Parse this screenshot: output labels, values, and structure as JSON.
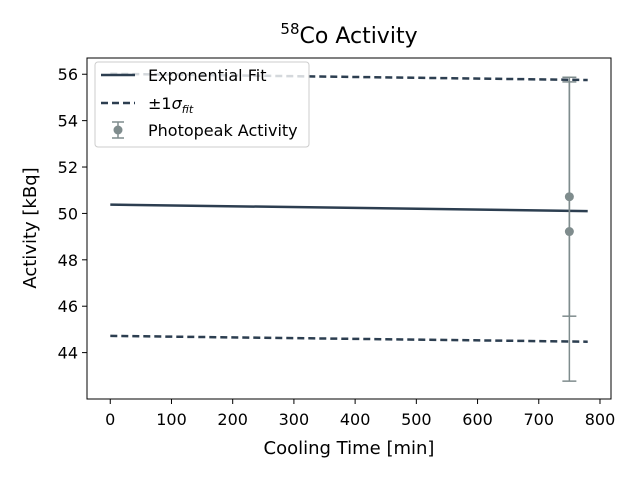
{
  "chart_data": {
    "type": "line",
    "title": {
      "superscript": "58",
      "main": "Co Activity"
    },
    "xlabel": "Cooling Time [min]",
    "ylabel": "Activity [kBq]",
    "xlim": [
      -38,
      818
    ],
    "ylim": [
      42.0,
      56.7
    ],
    "xticks": [
      0,
      100,
      200,
      300,
      400,
      500,
      600,
      700,
      800
    ],
    "yticks": [
      44,
      46,
      48,
      50,
      52,
      54,
      56
    ],
    "grid": false,
    "legend_position": "top-left",
    "series": [
      {
        "name": "Exponential Fit",
        "style": "solid",
        "color": "#2c3e50",
        "x": [
          0,
          780
        ],
        "y": [
          50.38,
          50.1
        ]
      },
      {
        "name": "+1σ",
        "legend": false,
        "style": "dashed",
        "color": "#2c3e50",
        "x": [
          0,
          780
        ],
        "y": [
          56.02,
          55.75
        ]
      },
      {
        "name": "-1σ",
        "legend": false,
        "style": "dashed",
        "color": "#2c3e50",
        "x": [
          0,
          780
        ],
        "y": [
          44.72,
          44.47
        ]
      }
    ],
    "points": {
      "name": "Photopeak Activity",
      "color": "#7f8c8d",
      "data": [
        {
          "x": 750,
          "y": 50.72,
          "yerr": 5.15
        },
        {
          "x": 750,
          "y": 49.22,
          "yerr": 6.45
        }
      ]
    },
    "legend": [
      {
        "label": "Exponential Fit",
        "kind": "solid"
      },
      {
        "label": "±1σfit",
        "label_text": "±1",
        "label_sigma": "σ",
        "label_sub": "fit",
        "kind": "dashed"
      },
      {
        "label": "Photopeak Activity",
        "kind": "errorbar"
      }
    ]
  }
}
